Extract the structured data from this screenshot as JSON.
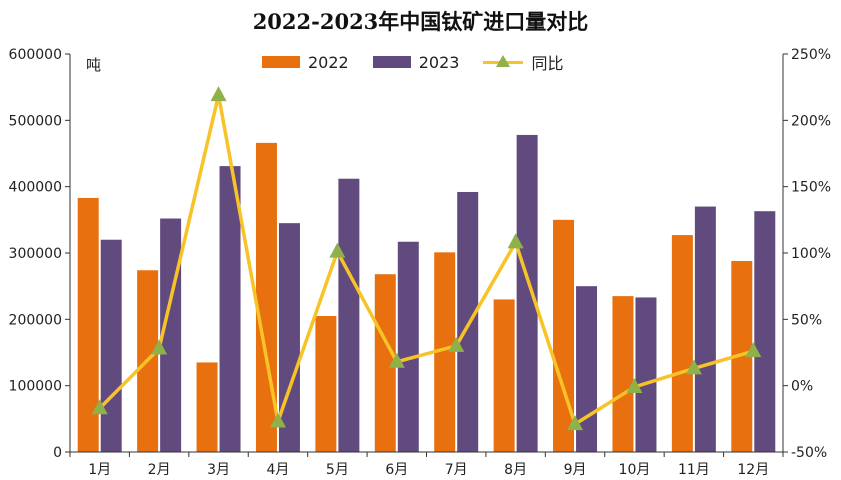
{
  "chart_data": {
    "type": "bar+line",
    "title": "2022-2023年中国钛矿进口量对比",
    "left_axis_unit": "吨",
    "categories": [
      "1月",
      "2月",
      "3月",
      "4月",
      "5月",
      "6月",
      "7月",
      "8月",
      "9月",
      "10月",
      "11月",
      "12月"
    ],
    "series": [
      {
        "name": "2022",
        "type": "bar",
        "axis": "left",
        "color": "#e8700f",
        "values": [
          383000,
          274000,
          135000,
          466000,
          205000,
          268000,
          301000,
          230000,
          350000,
          235000,
          327000,
          288000
        ]
      },
      {
        "name": "2023",
        "type": "bar",
        "axis": "left",
        "color": "#614b7e",
        "values": [
          320000,
          352000,
          431000,
          345000,
          412000,
          317000,
          392000,
          478000,
          250000,
          233000,
          370000,
          363000
        ]
      },
      {
        "name": "同比",
        "type": "line",
        "axis": "right",
        "color": "#f7c326",
        "marker_color": "#8fb14a",
        "values": [
          -17,
          28,
          219,
          -27,
          101,
          18,
          30,
          108,
          -29,
          -1,
          13,
          26
        ]
      }
    ],
    "left_axis": {
      "min": 0,
      "max": 600000,
      "ticks": [
        0,
        100000,
        200000,
        300000,
        400000,
        500000,
        600000
      ],
      "tick_labels": [
        "0",
        "100000",
        "200000",
        "300000",
        "400000",
        "500000",
        "600000"
      ]
    },
    "right_axis": {
      "min": -50,
      "max": 250,
      "ticks": [
        -50,
        0,
        50,
        100,
        150,
        200,
        250
      ],
      "tick_labels": [
        "-50%",
        "0%",
        "50%",
        "100%",
        "150%",
        "200%",
        "250%"
      ]
    },
    "legend_position": "top-center",
    "grid": false
  }
}
